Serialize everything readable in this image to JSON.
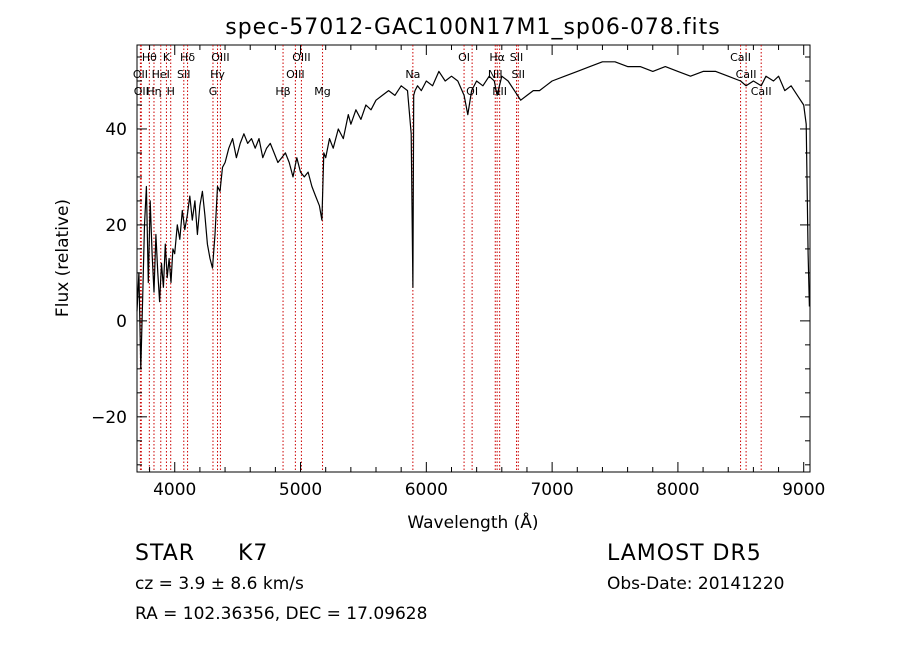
{
  "chart_data": {
    "type": "line",
    "title": "spec-57012-GAC100N17M1_sp06-078.fits",
    "xlabel": "Wavelength (Å)",
    "ylabel": "Flux (relative)",
    "xlim": [
      3700,
      9050
    ],
    "ylim": [
      -31.5,
      57.5
    ],
    "xticks": [
      4000,
      5000,
      6000,
      7000,
      8000,
      9000
    ],
    "xtick_labels": [
      "4000",
      "5000",
      "6000",
      "7000",
      "8000",
      "9000"
    ],
    "yticks": [
      -20,
      0,
      20,
      40
    ],
    "ytick_labels": [
      "−20",
      "0",
      "20",
      "40"
    ],
    "grid": false,
    "legend": "none",
    "series": [
      {
        "x": [
          3700,
          3715,
          3730,
          3745,
          3760,
          3775,
          3790,
          3805,
          3820,
          3835,
          3850,
          3865,
          3880,
          3895,
          3910,
          3925,
          3940,
          3955,
          3970,
          3985,
          4000,
          4020,
          4040,
          4060,
          4080,
          4100,
          4120,
          4140,
          4160,
          4180,
          4200,
          4220,
          4240,
          4260,
          4280,
          4300,
          4320,
          4340,
          4360,
          4380,
          4400,
          4430,
          4460,
          4490,
          4520,
          4550,
          4580,
          4610,
          4640,
          4670,
          4700,
          4730,
          4760,
          4790,
          4820,
          4850,
          4880,
          4910,
          4940,
          4970,
          5000,
          5030,
          5060,
          5090,
          5120,
          5150,
          5170,
          5185,
          5200,
          5230,
          5260,
          5300,
          5340,
          5380,
          5400,
          5440,
          5480,
          5520,
          5560,
          5600,
          5650,
          5700,
          5750,
          5800,
          5850,
          5880,
          5893,
          5900,
          5910,
          5930,
          5960,
          6000,
          6050,
          6100,
          6150,
          6200,
          6250,
          6300,
          6330,
          6360,
          6400,
          6450,
          6500,
          6540,
          6563,
          6600,
          6650,
          6700,
          6750,
          6800,
          6850,
          6900,
          6950,
          7000,
          7100,
          7200,
          7300,
          7400,
          7500,
          7600,
          7700,
          7800,
          7900,
          8000,
          8100,
          8200,
          8300,
          8400,
          8498,
          8542,
          8600,
          8662,
          8700,
          8760,
          8800,
          8850,
          8900,
          8950,
          9000,
          9020,
          9035,
          9045
        ],
        "y": [
          2,
          10,
          -10,
          5,
          20,
          28,
          8,
          25,
          14,
          6,
          18,
          10,
          4,
          12,
          7,
          16,
          9,
          13,
          8,
          15,
          14,
          20,
          17,
          23,
          19,
          22,
          26,
          21,
          25,
          18,
          24,
          27,
          22,
          16,
          13,
          11,
          18,
          28,
          27,
          32,
          33,
          36,
          38,
          34,
          37,
          39,
          37,
          38,
          36,
          38,
          34,
          36,
          37,
          35,
          33,
          34,
          35,
          33,
          30,
          34,
          31,
          30,
          31,
          28,
          26,
          24,
          21,
          35,
          34,
          38,
          36,
          40,
          38,
          43,
          41,
          44,
          42,
          45,
          44,
          46,
          47,
          48,
          47,
          49,
          48,
          39,
          7,
          47,
          48,
          49,
          48,
          50,
          49,
          52,
          50,
          51,
          50,
          47,
          43,
          48,
          50,
          49,
          51,
          50,
          47,
          51,
          50,
          48,
          46,
          47,
          48,
          48,
          49,
          50,
          51,
          52,
          53,
          54,
          54,
          53,
          53,
          52,
          53,
          52,
          51,
          52,
          52,
          51,
          50,
          49,
          50,
          49,
          51,
          50,
          51,
          48,
          49,
          47,
          45,
          41,
          14,
          3
        ]
      }
    ],
    "lines": [
      {
        "label": "Hθ",
        "x": 3798,
        "row": 0
      },
      {
        "label": "OII",
        "x": 3727,
        "row": 1
      },
      {
        "label": "OII",
        "x": 3734,
        "row": 2
      },
      {
        "label": "Hη",
        "x": 3835,
        "row": 2
      },
      {
        "label": "K",
        "x": 3934,
        "row": 0
      },
      {
        "label": "HeI",
        "x": 3889,
        "row": 1
      },
      {
        "label": "H",
        "x": 3968,
        "row": 2
      },
      {
        "label": "Hδ",
        "x": 4102,
        "row": 0
      },
      {
        "label": "SII",
        "x": 4072,
        "row": 1
      },
      {
        "label": "OIII",
        "x": 4363,
        "row": 0
      },
      {
        "label": "Hγ",
        "x": 4340,
        "row": 1
      },
      {
        "label": "G",
        "x": 4304,
        "row": 2
      },
      {
        "label": "OIII",
        "x": 5007,
        "row": 0
      },
      {
        "label": "OIII",
        "x": 4959,
        "row": 1
      },
      {
        "label": "Hβ",
        "x": 4861,
        "row": 2
      },
      {
        "label": "Mg",
        "x": 5175,
        "row": 2
      },
      {
        "label": "Na",
        "x": 5893,
        "row": 1
      },
      {
        "label": "OI",
        "x": 6300,
        "row": 0
      },
      {
        "label": "OI",
        "x": 6364,
        "row": 2
      },
      {
        "label": "Hα",
        "x": 6563,
        "row": 0
      },
      {
        "label": "NII",
        "x": 6548,
        "row": 1
      },
      {
        "label": "NII",
        "x": 6583,
        "row": 2
      },
      {
        "label": "SII",
        "x": 6717,
        "row": 0
      },
      {
        "label": "SII",
        "x": 6731,
        "row": 1
      },
      {
        "label": "CaII",
        "x": 8498,
        "row": 0
      },
      {
        "label": "CaII",
        "x": 8542,
        "row": 1
      },
      {
        "label": "CaII",
        "x": 8662,
        "row": 2
      }
    ]
  },
  "info": {
    "class": "STAR",
    "subclass": "K7",
    "cz": "cz = 3.9 ± 8.6 km/s",
    "radec": "RA = 102.36356, DEC =  17.09628",
    "survey": "LAMOST  DR5",
    "obsdate": "Obs-Date: 20141220"
  }
}
